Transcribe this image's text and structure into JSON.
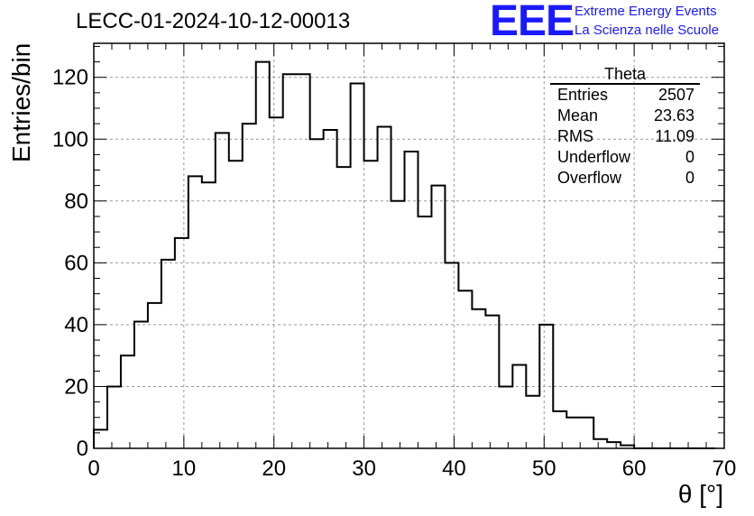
{
  "title": "LECC-01-2024-10-12-00013",
  "logo": {
    "mark": "EEE",
    "line1": "Extreme Energy Events",
    "line2": "La Scienza nelle Scuole"
  },
  "stats_box": {
    "title": "Theta",
    "rows": [
      {
        "label": "Entries",
        "value": "2507"
      },
      {
        "label": "Mean",
        "value": "23.63"
      },
      {
        "label": "RMS",
        "value": "11.09"
      },
      {
        "label": "Underflow",
        "value": "0"
      },
      {
        "label": "Overflow",
        "value": "0"
      }
    ]
  },
  "chart_data": {
    "type": "bar",
    "subtype": "step-histogram",
    "xlabel": "θ [°]",
    "ylabel": "Entries/bin",
    "xlim": [
      0,
      70
    ],
    "ylim": [
      0,
      131
    ],
    "bin_width": 1.5,
    "x_bin_edges_start": 0,
    "x_ticks": [
      "0",
      "10",
      "20",
      "30",
      "40",
      "50",
      "60",
      "70"
    ],
    "y_ticks": [
      "0",
      "20",
      "40",
      "60",
      "80",
      "100",
      "120"
    ],
    "grid": true,
    "values": [
      6,
      20,
      30,
      41,
      47,
      61,
      68,
      88,
      86,
      102,
      93,
      105,
      125,
      107,
      121,
      121,
      100,
      103,
      91,
      118,
      93,
      104,
      80,
      96,
      75,
      85,
      60,
      51,
      45,
      43,
      20,
      27,
      17,
      40,
      12,
      10,
      10,
      3,
      2,
      1,
      0,
      0,
      0,
      0,
      0,
      0
    ],
    "colors": {
      "line": "#000000",
      "grid": "#999999"
    }
  }
}
